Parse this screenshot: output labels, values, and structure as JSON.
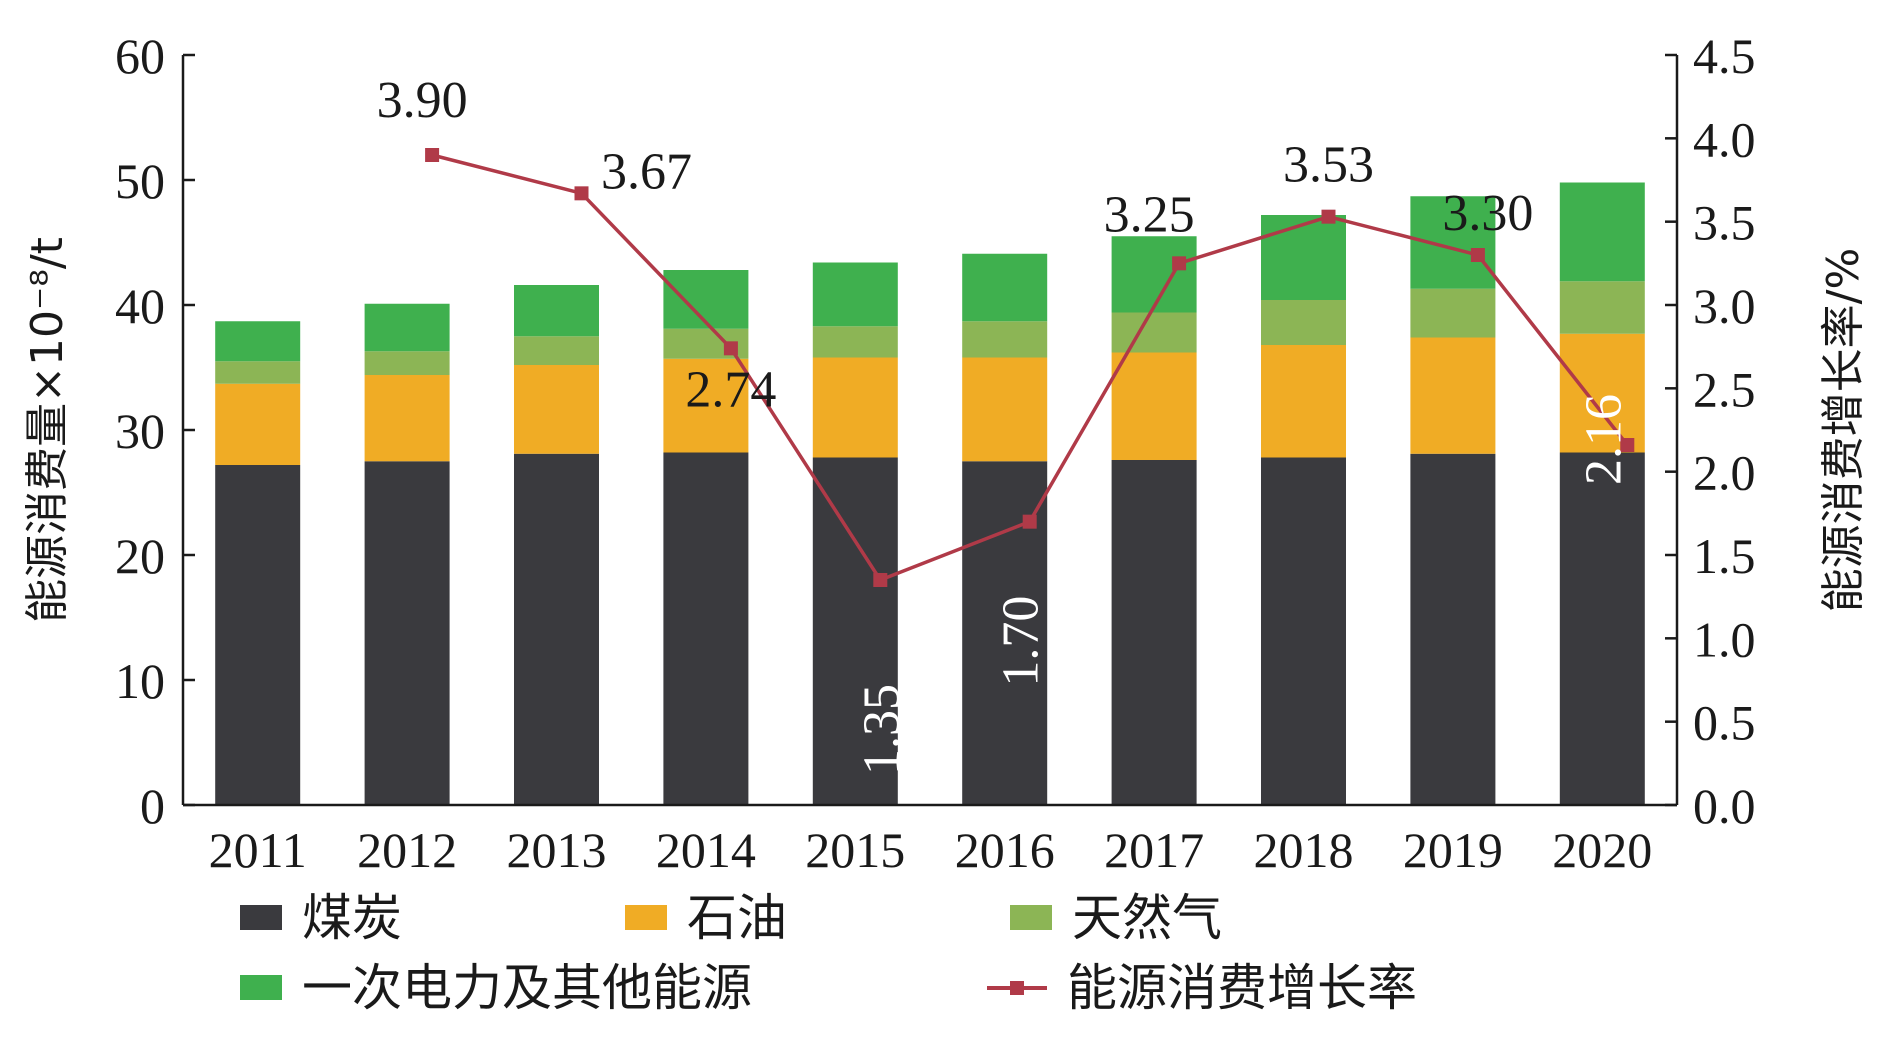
{
  "chart_data": {
    "type": "bar",
    "categories": [
      "2011",
      "2012",
      "2013",
      "2014",
      "2015",
      "2016",
      "2017",
      "2018",
      "2019",
      "2020"
    ],
    "stacked": true,
    "series": [
      {
        "name": "煤炭",
        "color": "#3a3a3e",
        "values": [
          27.2,
          27.5,
          28.1,
          28.2,
          27.8,
          27.5,
          27.6,
          27.8,
          28.1,
          28.2
        ]
      },
      {
        "name": "石油",
        "color": "#f0ac25",
        "values": [
          6.5,
          6.9,
          7.1,
          7.5,
          8.0,
          8.3,
          8.6,
          9.0,
          9.3,
          9.5
        ]
      },
      {
        "name": "天然气",
        "color": "#8cb555",
        "values": [
          1.8,
          1.9,
          2.3,
          2.4,
          2.5,
          2.9,
          3.2,
          3.6,
          3.9,
          4.2
        ]
      },
      {
        "name": "一次电力及其他能源",
        "color": "#3fb04e",
        "values": [
          3.2,
          3.8,
          4.1,
          4.7,
          5.1,
          5.4,
          6.1,
          6.8,
          7.4,
          7.9
        ]
      }
    ],
    "line_series": {
      "name": "能源消费增长率",
      "color": "#b03a48",
      "axis": "right",
      "values": [
        null,
        3.9,
        3.67,
        2.74,
        1.35,
        1.7,
        3.25,
        3.53,
        3.3,
        2.16
      ],
      "labels": [
        null,
        "3.90",
        "3.67",
        "2.74",
        "1.35",
        "1.70",
        "3.25",
        "3.53",
        "3.30",
        "2.16"
      ],
      "label_rotated": [
        false,
        false,
        false,
        false,
        true,
        true,
        false,
        false,
        false,
        true
      ]
    },
    "ylabel_left": "能源消费量×10⁻⁸/t",
    "ylabel_right": "能源消费增长率/%",
    "ylim_left": [
      0,
      60
    ],
    "ylim_right": [
      0,
      4.5
    ],
    "yticks_left": [
      "0",
      "10",
      "20",
      "30",
      "40",
      "50",
      "60"
    ],
    "yticks_right": [
      "0.0",
      "0.5",
      "1.0",
      "1.5",
      "2.0",
      "2.5",
      "3.0",
      "3.5",
      "4.0",
      "4.5"
    ],
    "legend": [
      {
        "name": "煤炭",
        "kind": "box",
        "color": "#3a3a3e"
      },
      {
        "name": "石油",
        "kind": "box",
        "color": "#f0ac25"
      },
      {
        "name": "天然气",
        "kind": "box",
        "color": "#8cb555"
      },
      {
        "name": "一次电力及其他能源",
        "kind": "box",
        "color": "#3fb04e"
      },
      {
        "name": "能源消费增长率",
        "kind": "line",
        "color": "#b03a48"
      }
    ],
    "legend_position": "bottom",
    "grid": false
  }
}
